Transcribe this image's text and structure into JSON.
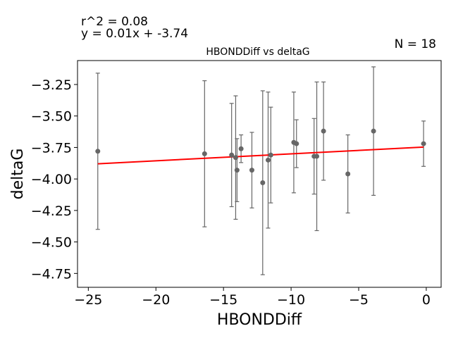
{
  "chart_data": {
    "type": "scatter",
    "title": "HBONDDiff vs deltaG",
    "xlabel": "HBONDDiff",
    "ylabel": "deltaG",
    "xlim": [
      -25.8,
      1.1
    ],
    "ylim": [
      -4.86,
      -3.06
    ],
    "xticks": [
      -25,
      -20,
      -15,
      -10,
      -5,
      0
    ],
    "xtick_labels": [
      "−25",
      "−20",
      "−15",
      "−10",
      "−5",
      "0"
    ],
    "yticks": [
      -4.75,
      -4.5,
      -4.25,
      -4.0,
      -3.75,
      -3.5,
      -3.25
    ],
    "ytick_labels": [
      "−4.75",
      "−4.50",
      "−4.25",
      "−4.00",
      "−3.75",
      "−3.50",
      "−3.25"
    ],
    "grid": false,
    "annotations": {
      "r_squared": "r^2 = 0.08",
      "equation": "y = 0.01x + -3.74",
      "n": "N = 18"
    },
    "points": [
      {
        "x": -24.3,
        "y": -3.78,
        "err": 0.62
      },
      {
        "x": -16.4,
        "y": -3.8,
        "err": 0.58
      },
      {
        "x": -14.4,
        "y": -3.81,
        "err": 0.41
      },
      {
        "x": -14.1,
        "y": -3.83,
        "err": 0.49
      },
      {
        "x": -14.0,
        "y": -3.93,
        "err": 0.25
      },
      {
        "x": -13.7,
        "y": -3.76,
        "err": 0.11
      },
      {
        "x": -12.9,
        "y": -3.93,
        "err": 0.3
      },
      {
        "x": -12.1,
        "y": -4.03,
        "err": 0.73
      },
      {
        "x": -11.7,
        "y": -3.85,
        "err": 0.54
      },
      {
        "x": -11.5,
        "y": -3.81,
        "err": 0.38
      },
      {
        "x": -9.8,
        "y": -3.71,
        "err": 0.4
      },
      {
        "x": -9.6,
        "y": -3.72,
        "err": 0.19
      },
      {
        "x": -8.3,
        "y": -3.82,
        "err": 0.3
      },
      {
        "x": -8.1,
        "y": -3.82,
        "err": 0.59
      },
      {
        "x": -7.6,
        "y": -3.62,
        "err": 0.39
      },
      {
        "x": -5.8,
        "y": -3.96,
        "err": 0.31
      },
      {
        "x": -3.9,
        "y": -3.62,
        "err": 0.51
      },
      {
        "x": -0.2,
        "y": -3.72,
        "err": 0.18
      }
    ],
    "fit_line": {
      "slope": 0.00549,
      "intercept": -3.746,
      "color": "#ff0000"
    },
    "marker_color": "#666666"
  }
}
